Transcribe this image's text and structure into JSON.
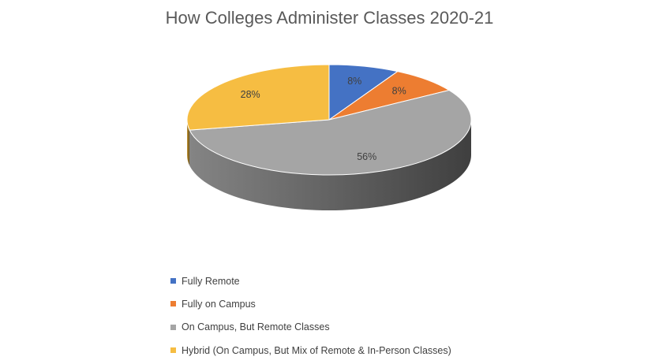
{
  "chart_data": {
    "type": "pie",
    "title": "How Colleges Administer Classes 2020-21",
    "categories": [
      "Fully Remote",
      "Fully on Campus",
      "On Campus, But Remote Classes",
      "Hybrid (On Campus, But Mix of Remote & In-Person Classes)"
    ],
    "values": [
      8,
      8,
      56,
      28
    ],
    "data_labels": [
      "8%",
      "8%",
      "56%",
      "28%"
    ],
    "colors": [
      "#4472C4",
      "#ED7D31",
      "#A5A5A5",
      "#F6BD42"
    ],
    "style": "3d",
    "legend_position": "bottom"
  }
}
